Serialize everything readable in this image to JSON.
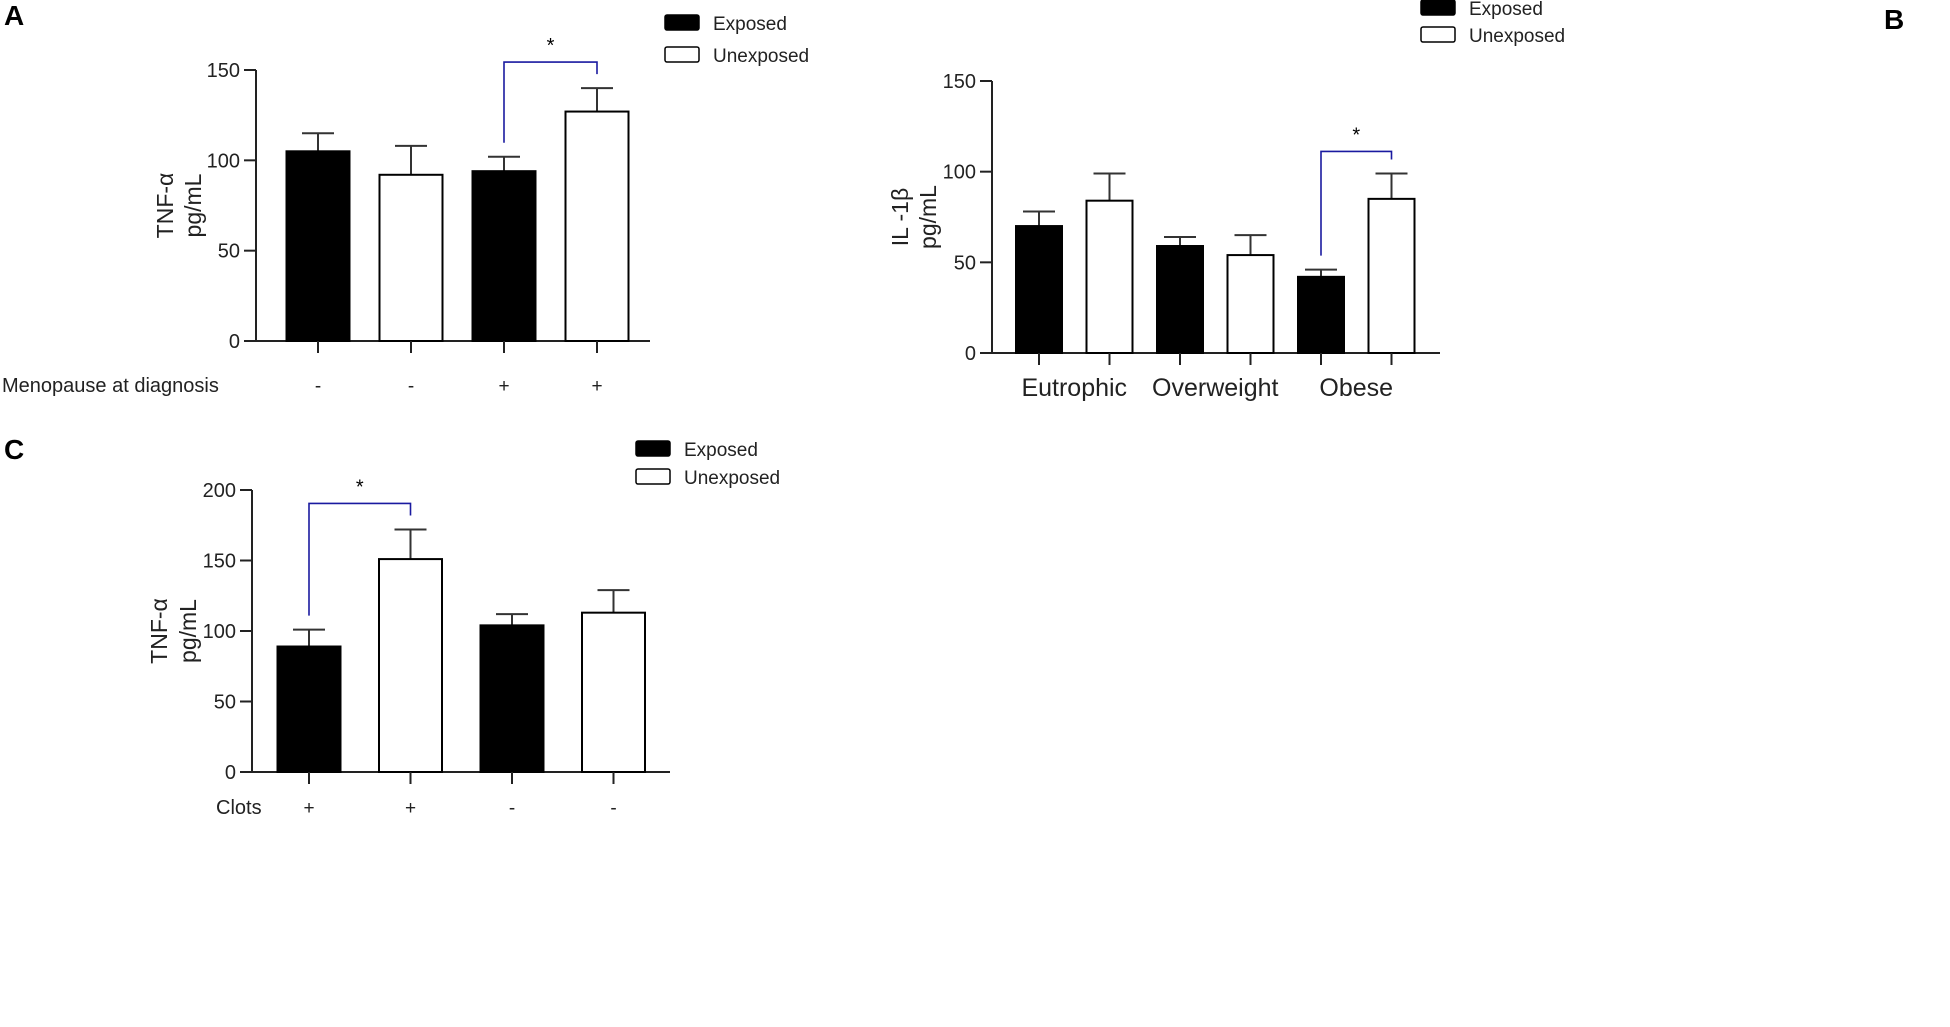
{
  "colors": {
    "exposed": "#000000",
    "unexposed": "#ffffff",
    "significance": "#1a1aa0",
    "axis": "#222222"
  },
  "chart_data": [
    {
      "panel": "A",
      "type": "bar",
      "ylabel_line1": "TNF-α",
      "ylabel_line2": "pg/mL",
      "xlabel_row_title": "Menopause at diagnosis",
      "categories": [
        "-",
        "-",
        "+",
        "+"
      ],
      "bar_series": [
        "Exposed",
        "Unexposed",
        "Exposed",
        "Unexposed"
      ],
      "values": [
        105,
        92,
        94,
        127
      ],
      "errors": [
        10,
        16,
        8,
        13
      ],
      "ylim": [
        0,
        150
      ],
      "yticks": [
        0,
        50,
        100,
        150
      ],
      "legend": [
        {
          "name": "Exposed",
          "fill": "black"
        },
        {
          "name": "Unexposed",
          "fill": "white"
        }
      ],
      "significance": [
        {
          "from": 2,
          "to": 3,
          "label": "*"
        }
      ]
    },
    {
      "panel": "B",
      "type": "bar",
      "ylabel_line1": "IL -1β",
      "ylabel_line2": "pg/mL",
      "groups": [
        "Eutrophic",
        "Overweight",
        "Obese"
      ],
      "series": [
        {
          "name": "Exposed",
          "values": [
            70,
            59,
            42
          ],
          "errors": [
            8,
            5,
            4
          ]
        },
        {
          "name": "Unexposed",
          "values": [
            84,
            54,
            85
          ],
          "errors": [
            15,
            11,
            14
          ]
        }
      ],
      "ylim": [
        0,
        150
      ],
      "yticks": [
        0,
        50,
        100,
        150
      ],
      "legend": [
        {
          "name": "Exposed",
          "fill": "black"
        },
        {
          "name": "Unexposed",
          "fill": "white"
        }
      ],
      "significance": [
        {
          "from": 4,
          "to": 5,
          "label": "*"
        }
      ]
    },
    {
      "panel": "C",
      "type": "bar",
      "ylabel_line1": "TNF-α",
      "ylabel_line2": "pg/mL",
      "xlabel_row_title": "Clots",
      "categories": [
        "+",
        "+",
        "-",
        "-"
      ],
      "bar_series": [
        "Exposed",
        "Unexposed",
        "Exposed",
        "Unexposed"
      ],
      "values": [
        89,
        151,
        104,
        113
      ],
      "errors": [
        12,
        21,
        8,
        16
      ],
      "ylim": [
        0,
        200
      ],
      "yticks": [
        0,
        50,
        100,
        150,
        200
      ],
      "legend": [
        {
          "name": "Exposed",
          "fill": "black"
        },
        {
          "name": "Unexposed",
          "fill": "white"
        }
      ],
      "significance": [
        {
          "from": 0,
          "to": 1,
          "label": "*"
        }
      ]
    }
  ]
}
